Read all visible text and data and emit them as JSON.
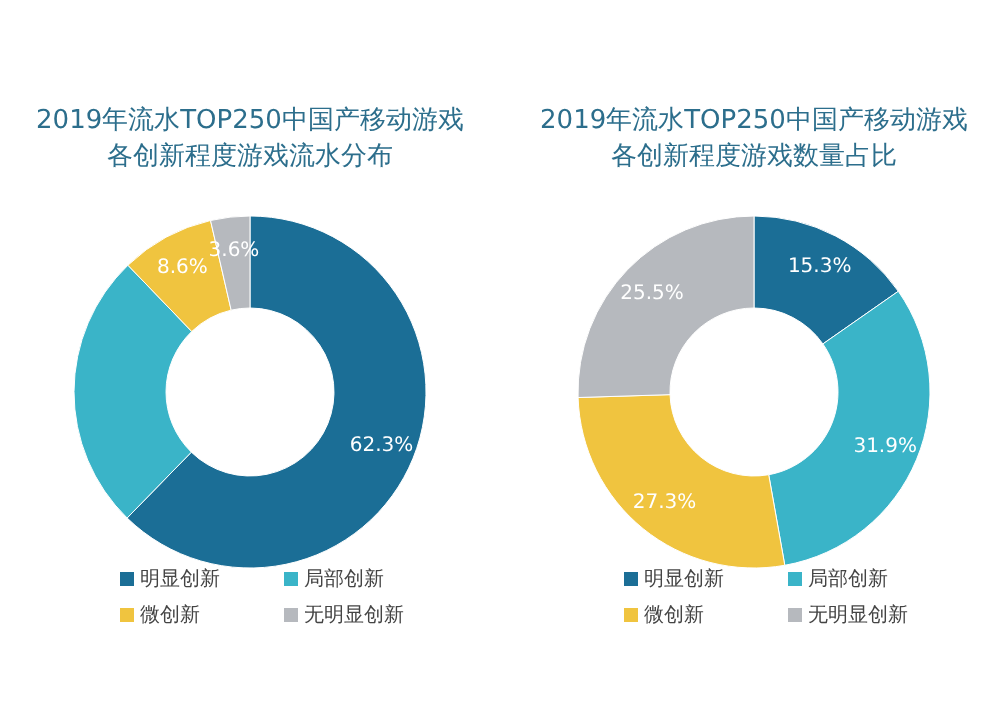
{
  "chart_data": [
    {
      "type": "donut",
      "title": "2019年流水TOP250中国产移动游戏各创新程度游戏流水分布",
      "categories": [
        "明显创新",
        "局部创新",
        "微创新",
        "无明显创新"
      ],
      "values": [
        62.3,
        25.5,
        8.6,
        3.6
      ],
      "colors": [
        "#1b6e96",
        "#3ab4c8",
        "#f0c43f",
        "#b6b9be"
      ],
      "value_labels": [
        "62.3%",
        null,
        "8.6%",
        "3.6%"
      ],
      "legend": "bottom"
    },
    {
      "type": "donut",
      "title": "2019年流水TOP250中国产移动游戏各创新程度游戏数量占比",
      "categories": [
        "明显创新",
        "局部创新",
        "微创新",
        "无明显创新"
      ],
      "values": [
        15.3,
        31.9,
        27.3,
        25.5
      ],
      "colors": [
        "#1b6e96",
        "#3ab4c8",
        "#f0c43f",
        "#b6b9be"
      ],
      "value_labels": [
        "15.3%",
        "31.9%",
        "27.3%",
        "25.5%"
      ],
      "legend": "bottom"
    }
  ]
}
